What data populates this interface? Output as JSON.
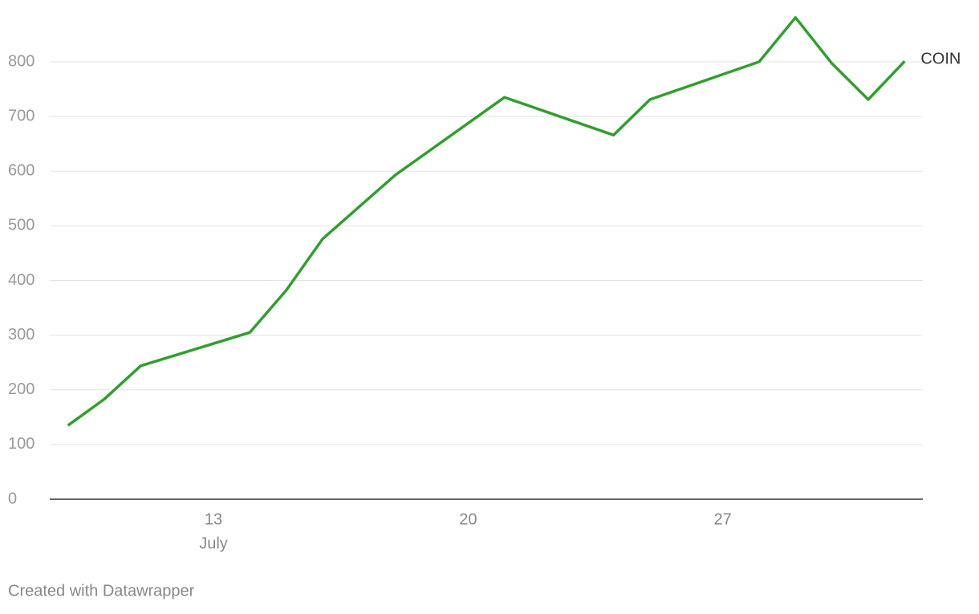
{
  "chart_data": {
    "type": "line",
    "x": [
      9,
      10,
      11,
      14,
      15,
      16,
      18,
      21,
      24,
      25,
      28,
      29,
      30,
      31,
      32
    ],
    "series": [
      {
        "name": "COIN",
        "color": "#30a02c",
        "values": [
          135,
          183,
          244,
          305,
          382,
          476,
          593,
          735,
          666,
          731,
          800,
          881,
          797,
          731,
          801
        ]
      }
    ],
    "xlim": [
      8.5,
      32.5
    ],
    "xticks": [
      13,
      20,
      27
    ],
    "x_annotation": "July",
    "ylim": [
      0,
      880
    ],
    "yticks": [
      0,
      100,
      200,
      300,
      400,
      500,
      600,
      700,
      800
    ],
    "grid": true
  },
  "footer": "Created with Datawrapper"
}
